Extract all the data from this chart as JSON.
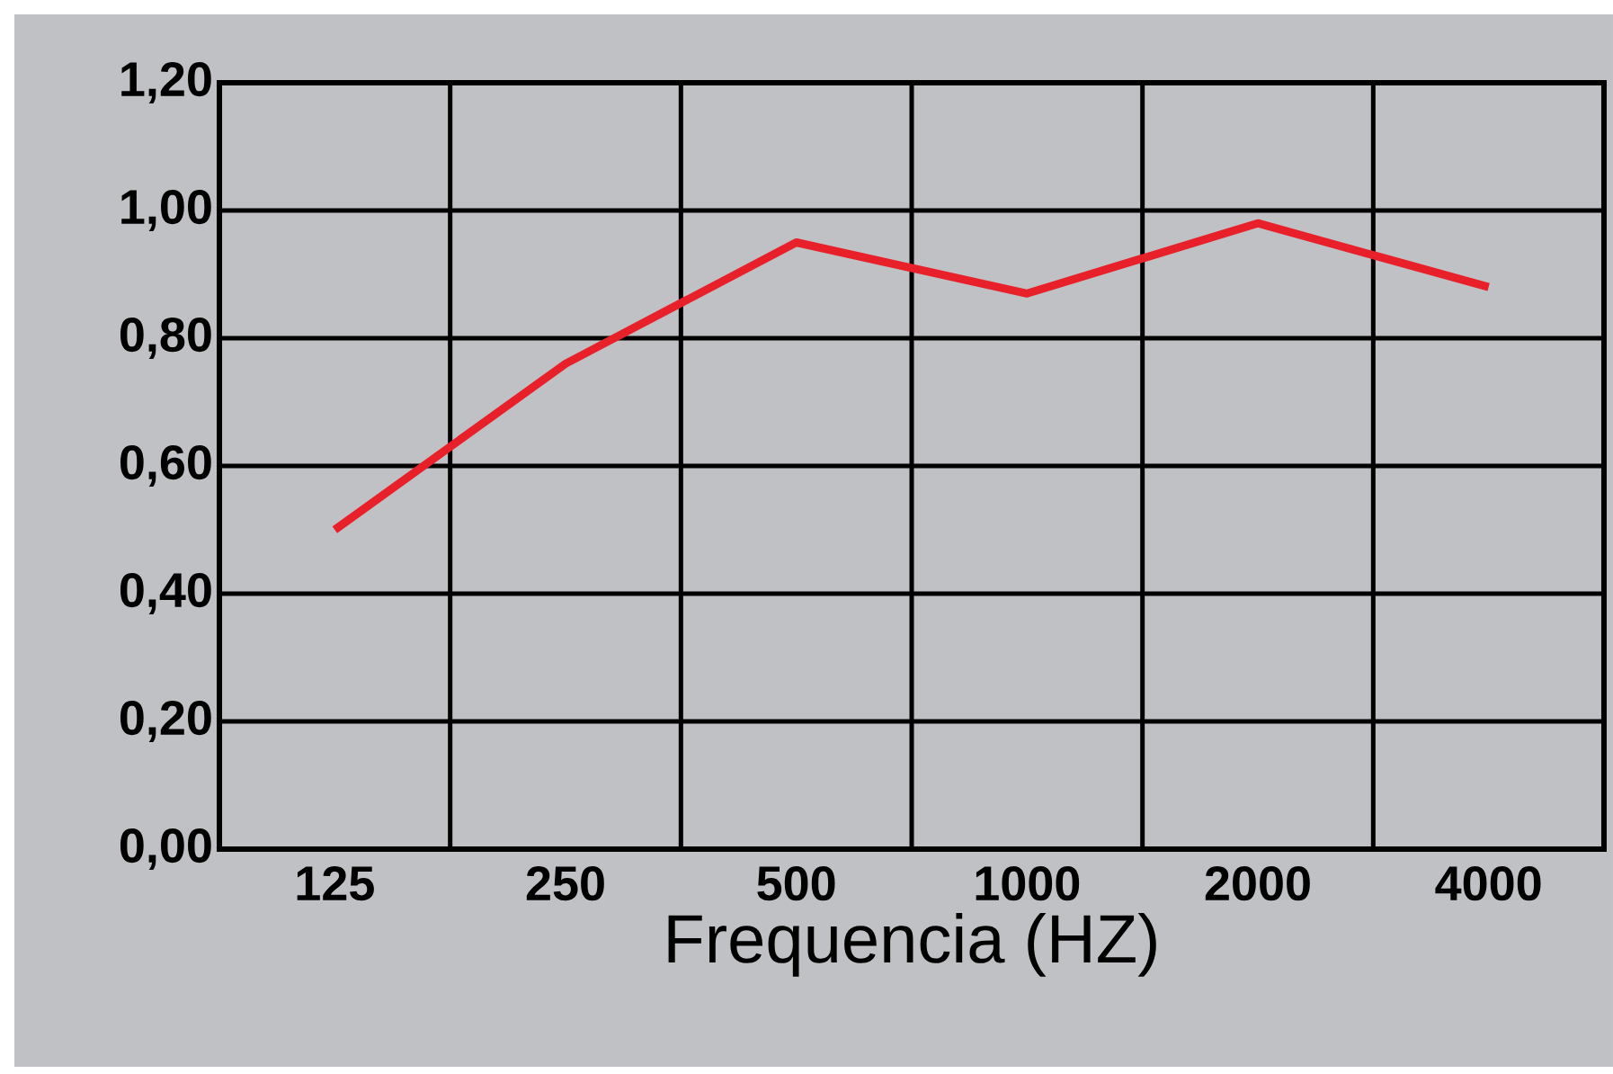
{
  "chart_data": {
    "type": "line",
    "xlabel": "Frequencia (HZ)",
    "categories": [
      "125",
      "250",
      "500",
      "1000",
      "2000",
      "4000"
    ],
    "series": [
      {
        "color": "#e8202a",
        "values": [
          0.5,
          0.76,
          0.95,
          0.87,
          0.98,
          0.88
        ]
      }
    ],
    "ylim": [
      0,
      1.2
    ],
    "yticks": [
      {
        "value": 0,
        "label": "0,00"
      },
      {
        "value": 0.2,
        "label": "0,20"
      },
      {
        "value": 0.4,
        "label": "0,40"
      },
      {
        "value": 0.6,
        "label": "0,60"
      },
      {
        "value": 0.8,
        "label": "0,80"
      },
      {
        "value": 1.0,
        "label": "1,00"
      },
      {
        "value": 1.2,
        "label": "1,20"
      }
    ],
    "grid": true,
    "marker": "none",
    "line_style": "solid"
  }
}
